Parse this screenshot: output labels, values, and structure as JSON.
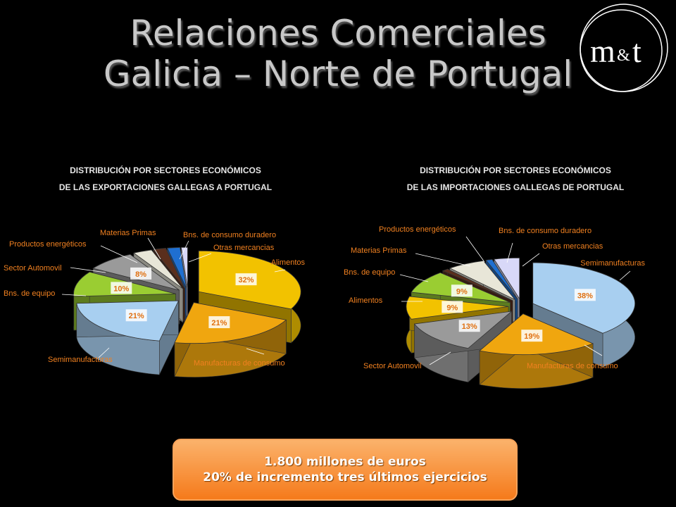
{
  "title": {
    "line1": "Relaciones Comerciales",
    "line2": "Galicia – Norte de Portugal"
  },
  "logo": {
    "text_m": "m",
    "text_amp": "&",
    "text_t": "t"
  },
  "callout": {
    "line1": "1.800 millones de euros",
    "line2": "20%  de incremento tres últimos ejercicios"
  },
  "colors": {
    "alimentos": "#f2c200",
    "manufacturas": "#f0a60f",
    "semimanufacturas": "#a8cff0",
    "bns_equipo": "#9acd32",
    "sector_automovil": "#9a9a9a",
    "productos_energeticos": "#e8e6d8",
    "materias_primas": "#5a2e1c",
    "bns_consumo_duradero": "#1f6fd0",
    "otras_mercancias": "#d8d8f8",
    "label_text": "#f08020",
    "callout_bg": "#f68a2c"
  },
  "chart_data": [
    {
      "type": "pie",
      "title": "DISTRIBUCIÓN POR SECTORES ECONÓMICOS",
      "subtitle": "DE LAS EXPORTACIONES GALLEGAS A PORTUGAL",
      "series": [
        {
          "name": "Alimentos",
          "value": 32,
          "label": "32%"
        },
        {
          "name": "Manufacturas  de consumo",
          "value": 21,
          "label": "21%"
        },
        {
          "name": "Semimanufacturas",
          "value": 21,
          "label": "21%"
        },
        {
          "name": "Bns. de equipo",
          "value": 10,
          "label": "10%"
        },
        {
          "name": "Sector Automovil",
          "value": 8,
          "label": "8%"
        },
        {
          "name": "Productos energéticos",
          "value": 3,
          "label": ""
        },
        {
          "name": "Materias Primas",
          "value": 2,
          "label": ""
        },
        {
          "name": "Bns. de consumo  duradero",
          "value": 2,
          "label": ""
        },
        {
          "name": "Otras mercancias",
          "value": 1,
          "label": ""
        }
      ]
    },
    {
      "type": "pie",
      "title": "DISTRIBUCIÓN POR SECTORES ECONÓMICOS",
      "subtitle": "DE LAS IMPORTACIONES GALLEGAS DE PORTUGAL",
      "series": [
        {
          "name": "Semimanufacturas",
          "value": 38,
          "label": "38%"
        },
        {
          "name": "Manufacturas  de consumo",
          "value": 19,
          "label": "19%"
        },
        {
          "name": "Sector Automovil",
          "value": 13,
          "label": "13%"
        },
        {
          "name": "Alimentos",
          "value": 9,
          "label": "9%"
        },
        {
          "name": "Bns. de equipo",
          "value": 9,
          "label": "9%"
        },
        {
          "name": "Materias Primas",
          "value": 1,
          "label": ""
        },
        {
          "name": "Productos energéticos",
          "value": 6,
          "label": ""
        },
        {
          "name": "Bns. de consumo  duradero",
          "value": 1,
          "label": ""
        },
        {
          "name": "Otras mercancias",
          "value": 4,
          "label": ""
        }
      ]
    }
  ]
}
